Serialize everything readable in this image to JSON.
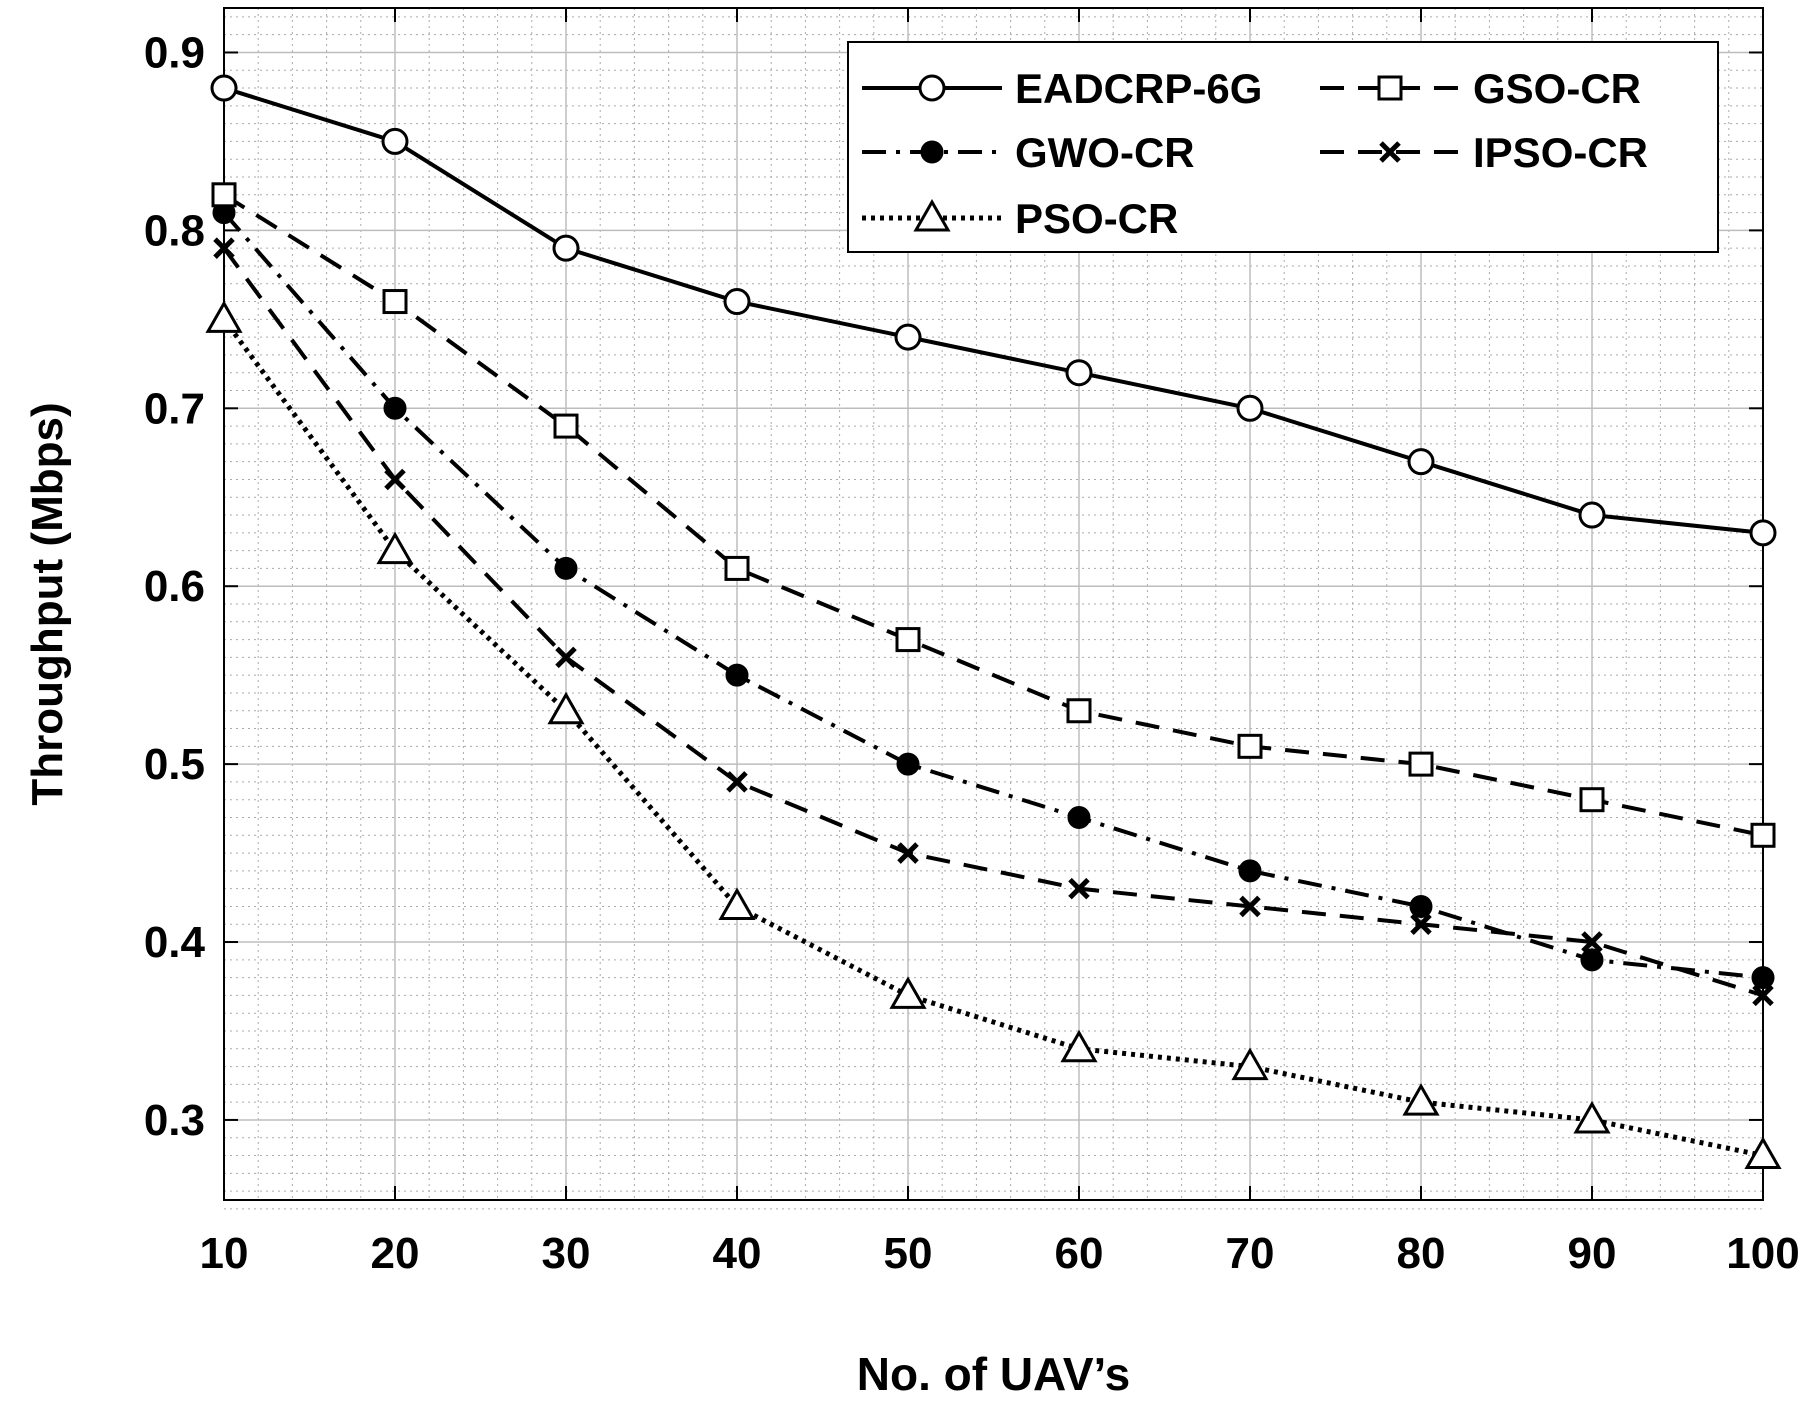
{
  "chart_data": {
    "type": "line",
    "title": "",
    "xlabel": "No. of UAV’s",
    "ylabel": "Throughput (Mbps)",
    "x": [
      10,
      20,
      30,
      40,
      50,
      60,
      70,
      80,
      90,
      100
    ],
    "xlim": [
      10,
      100
    ],
    "ylim": [
      0.255,
      0.925
    ],
    "xticks": [
      "10",
      "20",
      "30",
      "40",
      "50",
      "60",
      "70",
      "80",
      "90",
      "100"
    ],
    "yticks": [
      "0.3",
      "0.4",
      "0.5",
      "0.6",
      "0.7",
      "0.8",
      "0.9"
    ],
    "grid": true,
    "minor_grid": true,
    "legend_position": "top-right",
    "series": [
      {
        "name": "EADCRP-6G",
        "marker": "circle",
        "line": "solid",
        "values": [
          0.88,
          0.85,
          0.79,
          0.76,
          0.74,
          0.72,
          0.7,
          0.67,
          0.64,
          0.63
        ]
      },
      {
        "name": "GSO-CR",
        "marker": "square",
        "line": "dashed",
        "values": [
          0.82,
          0.76,
          0.69,
          0.61,
          0.57,
          0.53,
          0.51,
          0.5,
          0.48,
          0.46
        ]
      },
      {
        "name": "GWO-CR",
        "marker": "dot",
        "line": "dashdot",
        "values": [
          0.81,
          0.7,
          0.61,
          0.55,
          0.5,
          0.47,
          0.44,
          0.42,
          0.39,
          0.38
        ]
      },
      {
        "name": "IPSO-CR",
        "marker": "x",
        "line": "dashed",
        "values": [
          0.79,
          0.66,
          0.56,
          0.49,
          0.45,
          0.43,
          0.42,
          0.41,
          0.4,
          0.37
        ]
      },
      {
        "name": "PSO-CR",
        "marker": "triangle",
        "line": "dotted",
        "values": [
          0.75,
          0.62,
          0.53,
          0.42,
          0.37,
          0.34,
          0.33,
          0.31,
          0.3,
          0.28
        ]
      }
    ]
  }
}
